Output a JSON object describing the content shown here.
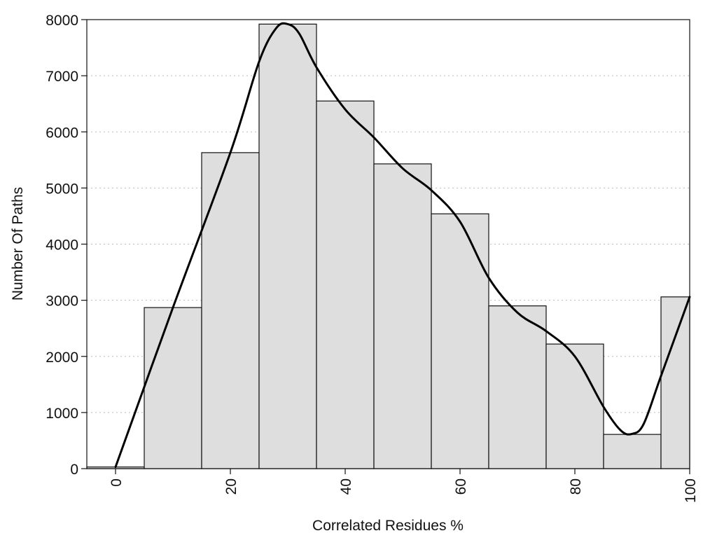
{
  "chart_data": {
    "type": "bar",
    "xlabel": "Correlated Residues %",
    "ylabel": "Number Of Paths",
    "x_range": [
      -5,
      100
    ],
    "ylim": [
      0,
      8000
    ],
    "x_ticks": [
      0,
      20,
      40,
      60,
      80,
      100
    ],
    "y_ticks": [
      0,
      1000,
      2000,
      3000,
      4000,
      5000,
      6000,
      7000,
      8000
    ],
    "grid": "horizontal dotted",
    "bars": [
      {
        "x0": -5,
        "x1": 5,
        "value": 30
      },
      {
        "x0": 5,
        "x1": 15,
        "value": 2870
      },
      {
        "x0": 15,
        "x1": 25,
        "value": 5630
      },
      {
        "x0": 25,
        "x1": 35,
        "value": 7920
      },
      {
        "x0": 35,
        "x1": 45,
        "value": 6550
      },
      {
        "x0": 45,
        "x1": 55,
        "value": 5430
      },
      {
        "x0": 55,
        "x1": 65,
        "value": 4540
      },
      {
        "x0": 65,
        "x1": 75,
        "value": 2900
      },
      {
        "x0": 75,
        "x1": 85,
        "value": 2220
      },
      {
        "x0": 85,
        "x1": 95,
        "value": 610
      },
      {
        "x0": 95,
        "x1": 100,
        "value": 3060
      }
    ],
    "curve": {
      "x": [
        0,
        10,
        20,
        25,
        28,
        30,
        32,
        35,
        40,
        45,
        50,
        55,
        60,
        65,
        70,
        75,
        80,
        85,
        88,
        90,
        92,
        95,
        100
      ],
      "y": [
        30,
        2870,
        5630,
        7250,
        7850,
        7920,
        7750,
        7150,
        6400,
        5900,
        5350,
        4960,
        4400,
        3400,
        2780,
        2450,
        2000,
        1100,
        680,
        620,
        800,
        1650,
        3060
      ]
    },
    "colors": {
      "bar_fill": "#dedede",
      "bar_stroke": "#111111",
      "curve": "#000000"
    }
  }
}
